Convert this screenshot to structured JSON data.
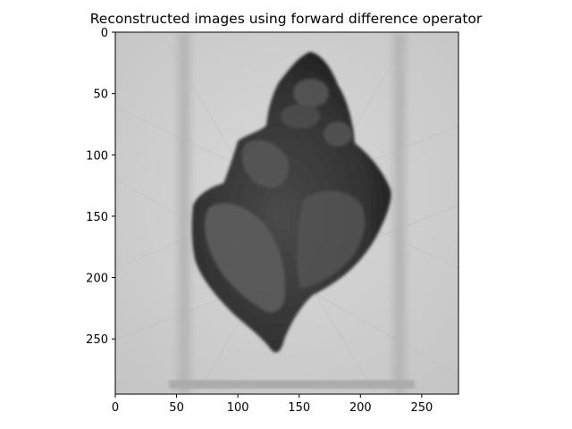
{
  "figure": {
    "title": "Reconstructed images using forward difference operator"
  },
  "image_axes": {
    "colormap": "gray",
    "background_gray": "#cfcfcf",
    "shell_gray": "#3a3a3a",
    "xlim": [
      0,
      280
    ],
    "ylim": [
      0,
      295
    ],
    "x_ticks": [
      {
        "value": 0,
        "label": "0"
      },
      {
        "value": 50,
        "label": "50"
      },
      {
        "value": 100,
        "label": "100"
      },
      {
        "value": 150,
        "label": "150"
      },
      {
        "value": 200,
        "label": "200"
      },
      {
        "value": 250,
        "label": "250"
      }
    ],
    "y_ticks": [
      {
        "value": 0,
        "label": "0"
      },
      {
        "value": 50,
        "label": "50"
      },
      {
        "value": 100,
        "label": "100"
      },
      {
        "value": 150,
        "label": "150"
      },
      {
        "value": 200,
        "label": "200"
      },
      {
        "value": 250,
        "label": "250"
      }
    ]
  }
}
